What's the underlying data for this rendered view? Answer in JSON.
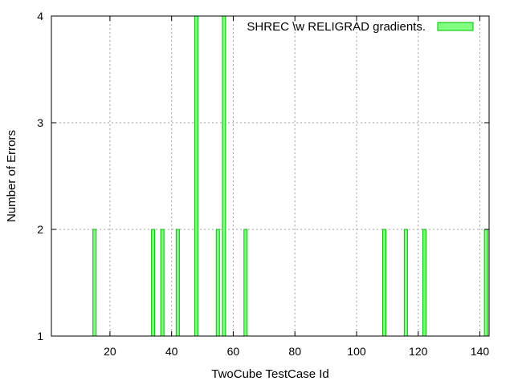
{
  "chart_data": {
    "type": "bar",
    "xlabel": "TwoCube TestCase Id",
    "ylabel": "Number of Errors",
    "xlim": [
      1,
      143
    ],
    "ylim": [
      1,
      4
    ],
    "xticks": [
      20,
      40,
      60,
      80,
      100,
      120,
      140
    ],
    "yticks": [
      1,
      2,
      3,
      4
    ],
    "grid": true,
    "legend_position": "top-right",
    "series": [
      {
        "name": "SHREC \\w RELIGRAD gradients.",
        "color": "#80ff80",
        "edge_color": "#00c000",
        "x": [
          15,
          34,
          37,
          42,
          48,
          55,
          57,
          64,
          109,
          116,
          122,
          142
        ],
        "values": [
          2,
          2,
          2,
          2,
          4,
          2,
          4,
          2,
          2,
          2,
          2,
          2
        ]
      }
    ]
  }
}
